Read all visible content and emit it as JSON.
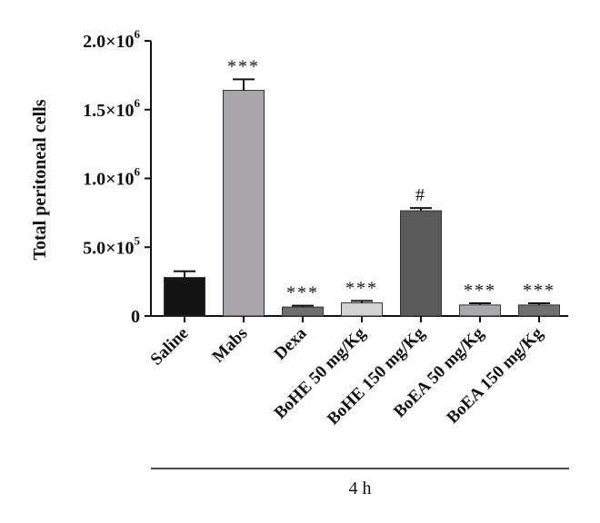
{
  "chart_data": {
    "type": "bar",
    "ylabel": "Total peritoneal cells",
    "xlabel": "",
    "ylim": [
      0,
      2000000
    ],
    "yticks": [
      {
        "value": 0,
        "mantissa": "0",
        "exponent": ""
      },
      {
        "value": 500000,
        "mantissa": "5.0×10",
        "exponent": "5"
      },
      {
        "value": 1000000,
        "mantissa": "1.0×10",
        "exponent": "6"
      },
      {
        "value": 1500000,
        "mantissa": "1.5×10",
        "exponent": "6"
      },
      {
        "value": 2000000,
        "mantissa": "2.0×10",
        "exponent": "6"
      }
    ],
    "categories": [
      "Saline",
      "Mabs",
      "Dexa",
      "BoHE 50 mg/Kg",
      "BoHE 150 mg/Kg",
      "BoEA 50 mg/Kg",
      "BoEA 150 mg/Kg"
    ],
    "values": [
      280000,
      1640000,
      65000,
      95000,
      765000,
      80000,
      80000
    ],
    "errors": [
      45000,
      80000,
      10000,
      15000,
      20000,
      12000,
      12000
    ],
    "colors": [
      "#141414",
      "#a8a6ab",
      "#6e6e6e",
      "#d4d4d4",
      "#5a5a5a",
      "#a9a9ad",
      "#707070"
    ],
    "annotations": [
      "",
      "***",
      "***",
      "***",
      "#",
      "***",
      "***"
    ],
    "group_label": "4 h",
    "grid": false
  }
}
